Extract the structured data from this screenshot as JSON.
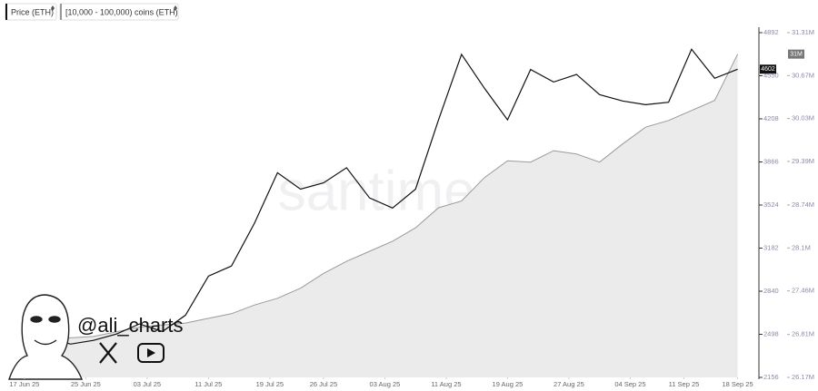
{
  "chart_data": {
    "type": "line",
    "legend": [
      "Price (ETH)",
      "[10,000 - 100,000) coins (ETH)"
    ],
    "watermark": "santiment",
    "handle": "@ali_charts",
    "x": [
      "2025-06-17",
      "2025-06-20",
      "2025-06-23",
      "2025-06-26",
      "2025-06-29",
      "2025-07-02",
      "2025-07-05",
      "2025-07-08",
      "2025-07-11",
      "2025-07-14",
      "2025-07-17",
      "2025-07-20",
      "2025-07-23",
      "2025-07-26",
      "2025-07-29",
      "2025-08-01",
      "2025-08-04",
      "2025-08-07",
      "2025-08-10",
      "2025-08-13",
      "2025-08-16",
      "2025-08-19",
      "2025-08-22",
      "2025-08-25",
      "2025-08-28",
      "2025-08-31",
      "2025-09-03",
      "2025-09-06",
      "2025-09-09",
      "2025-09-12",
      "2025-09-15",
      "2025-09-18"
    ],
    "xlim": [
      "2025-06-15",
      "2025-09-19"
    ],
    "xticks": [
      {
        "value": "2025-06-17",
        "label": "17 Jun 25"
      },
      {
        "value": "2025-06-25",
        "label": "25 Jun 25"
      },
      {
        "value": "2025-07-03",
        "label": "03 Jul 25"
      },
      {
        "value": "2025-07-11",
        "label": "11 Jul 25"
      },
      {
        "value": "2025-07-19",
        "label": "19 Jul 25"
      },
      {
        "value": "2025-07-26",
        "label": "26 Jul 25"
      },
      {
        "value": "2025-08-03",
        "label": "03 Aug 25"
      },
      {
        "value": "2025-08-11",
        "label": "11 Aug 25"
      },
      {
        "value": "2025-08-19",
        "label": "19 Aug 25"
      },
      {
        "value": "2025-08-27",
        "label": "27 Aug 25"
      },
      {
        "value": "2025-09-04",
        "label": "04 Sep 25"
      },
      {
        "value": "2025-09-11",
        "label": "11 Sep 25"
      },
      {
        "value": "2025-09-18",
        "label": "18 Sep 25"
      }
    ],
    "ylim": [
      2156,
      4892
    ],
    "yticks": [
      2156,
      2498,
      2840,
      3182,
      3524,
      3866,
      4208,
      4550,
      4892
    ],
    "y2lim": [
      26170000,
      31310000
    ],
    "y2ticks": [
      {
        "value": 26170000,
        "label": "26.17M"
      },
      {
        "value": 26810000,
        "label": "26.81M"
      },
      {
        "value": 27460000,
        "label": "27.46M"
      },
      {
        "value": 28100000,
        "label": "28.1M"
      },
      {
        "value": 28740000,
        "label": "28.74M"
      },
      {
        "value": 29390000,
        "label": "29.39M"
      },
      {
        "value": 30030000,
        "label": "30.03M"
      },
      {
        "value": 30670000,
        "label": "30.67M"
      },
      {
        "value": 31310000,
        "label": "31.31M"
      }
    ],
    "series": [
      {
        "name": "Price (ETH)",
        "color": "#111111",
        "values": [
          2523,
          2480,
          2420,
          2450,
          2500,
          2580,
          2520,
          2650,
          2960,
          3040,
          3380,
          3780,
          3650,
          3700,
          3820,
          3580,
          3500,
          3650,
          4200,
          4720,
          4450,
          4200,
          4600,
          4500,
          4560,
          4400,
          4350,
          4320,
          4340,
          4760,
          4530,
          4602
        ]
      },
      {
        "name": "[10,000 - 100,000) coins (ETH)",
        "color": "#9a9a9a",
        "axis": "y2",
        "area": true,
        "values": [
          26790000,
          26780000,
          26760000,
          26780000,
          26850000,
          26920000,
          26950000,
          26980000,
          27050000,
          27120000,
          27250000,
          27350000,
          27500000,
          27720000,
          27900000,
          28050000,
          28200000,
          28400000,
          28700000,
          28800000,
          29150000,
          29400000,
          29380000,
          29550000,
          29500000,
          29380000,
          29650000,
          29900000,
          30000000,
          30150000,
          30300000,
          30990000
        ],
        "value_labels": [
          null,
          null,
          null,
          null,
          null,
          null,
          null,
          null,
          null,
          null,
          null,
          null,
          null,
          null,
          null,
          null,
          null,
          null,
          null,
          null,
          null,
          null,
          null,
          null,
          null,
          null,
          null,
          null,
          null,
          null,
          null,
          "31M"
        ]
      }
    ]
  }
}
